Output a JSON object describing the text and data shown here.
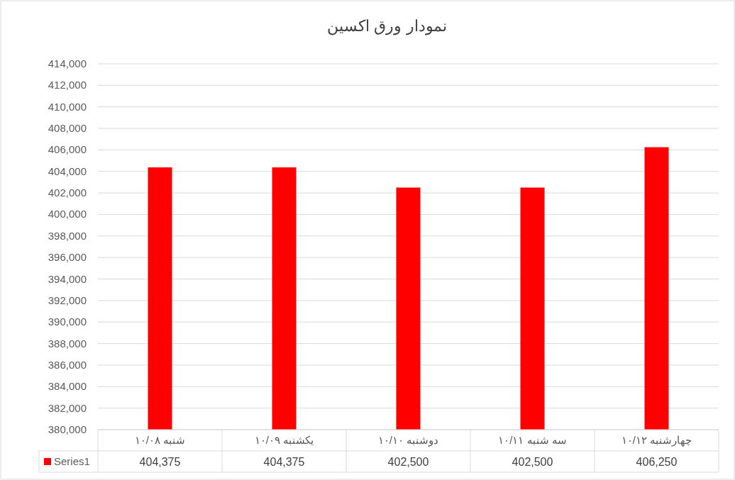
{
  "chart_data": {
    "type": "bar",
    "title": "نمودار ورق اکسین",
    "categories": [
      "شنبه ۱۰/۰۸",
      "یکشنبه ۱۰/۰۹",
      "دوشنبه ۱۰/۱۰",
      "سه شنبه ۱۰/۱۱",
      "چهارشنبه ۱۰/۱۲"
    ],
    "series": [
      {
        "name": "Series1",
        "color": "#ff0000",
        "values": [
          404375,
          404375,
          402500,
          402500,
          406250
        ],
        "value_labels": [
          "404,375",
          "404,375",
          "402,500",
          "402,500",
          "406,250"
        ]
      }
    ],
    "ylim": [
      380000,
      414000
    ],
    "yticks": [
      {
        "value": 380000,
        "label": "380,000"
      },
      {
        "value": 382000,
        "label": "382,000"
      },
      {
        "value": 384000,
        "label": "384,000"
      },
      {
        "value": 386000,
        "label": "386,000"
      },
      {
        "value": 388000,
        "label": "388,000"
      },
      {
        "value": 390000,
        "label": "390,000"
      },
      {
        "value": 392000,
        "label": "392,000"
      },
      {
        "value": 394000,
        "label": "394,000"
      },
      {
        "value": 396000,
        "label": "396,000"
      },
      {
        "value": 398000,
        "label": "398,000"
      },
      {
        "value": 400000,
        "label": "400,000"
      },
      {
        "value": 402000,
        "label": "402,000"
      },
      {
        "value": 404000,
        "label": "404,000"
      },
      {
        "value": 406000,
        "label": "406,000"
      },
      {
        "value": 408000,
        "label": "408,000"
      },
      {
        "value": 410000,
        "label": "410,000"
      },
      {
        "value": 412000,
        "label": "412,000"
      },
      {
        "value": 414000,
        "label": "414,000"
      }
    ],
    "grid": "y"
  }
}
